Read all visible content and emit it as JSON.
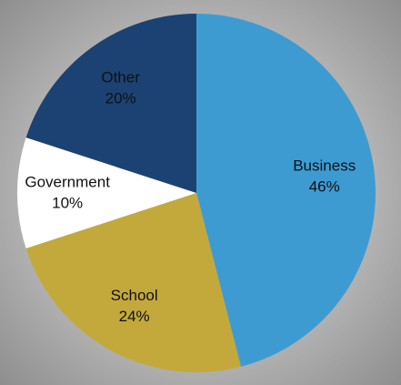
{
  "chart_data": {
    "type": "pie",
    "categories": [
      "Business",
      "School",
      "Government",
      "Other"
    ],
    "values": [
      46,
      24,
      10,
      20
    ],
    "value_labels": [
      "46%",
      "24%",
      "10%",
      "20%"
    ],
    "colors": [
      "#3e9bd2",
      "#c3a93b",
      "#ffffff",
      "#1b4272"
    ]
  }
}
